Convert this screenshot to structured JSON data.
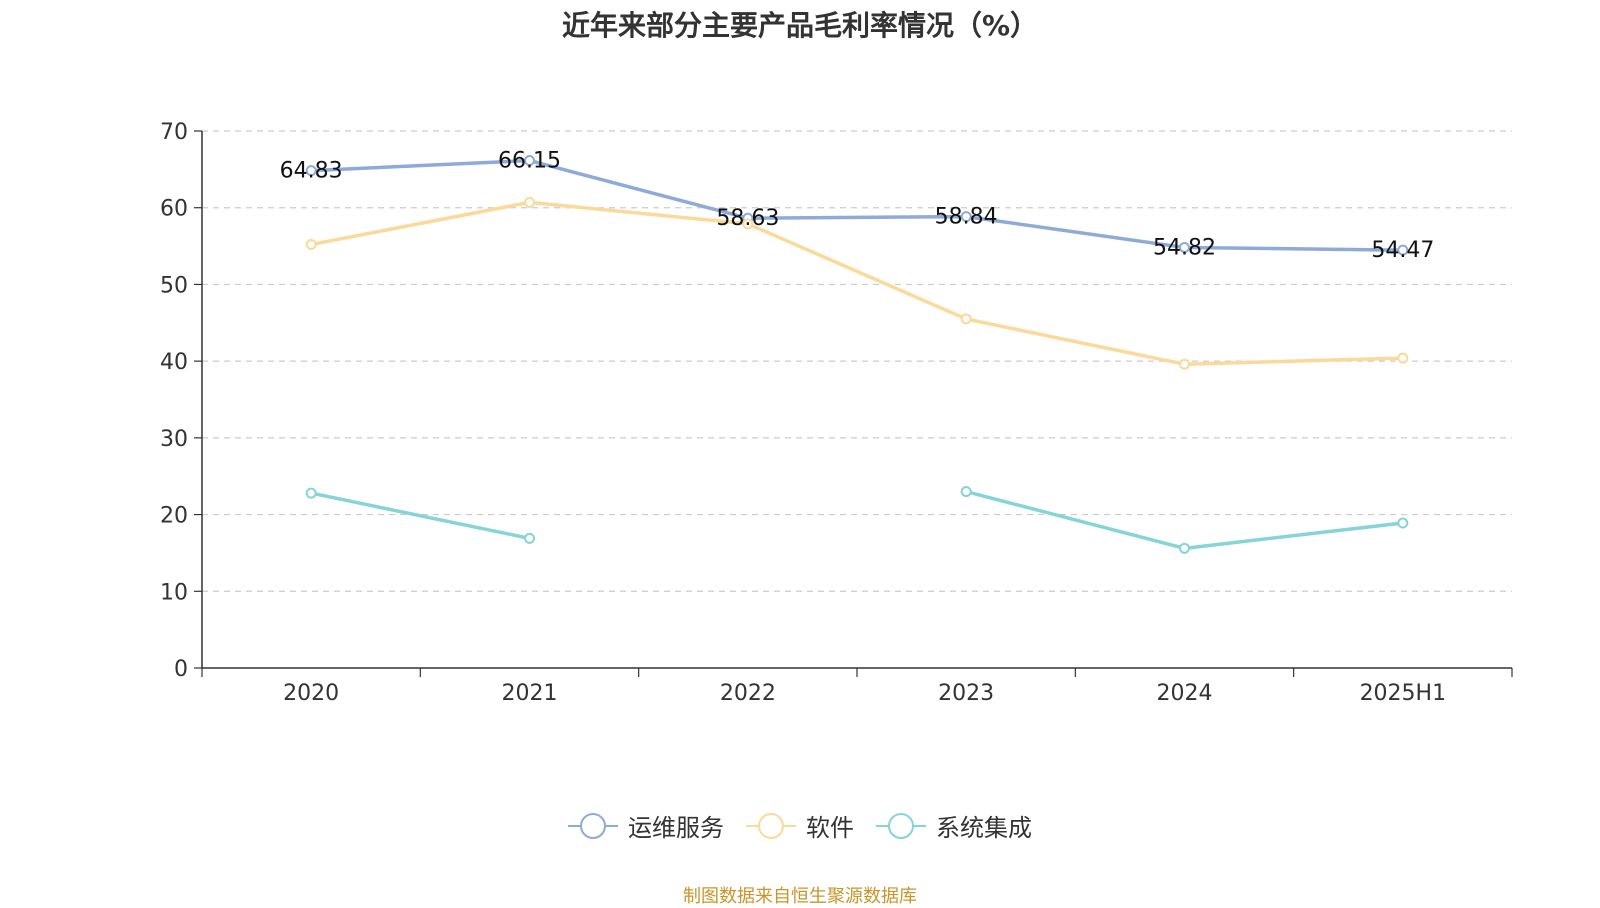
{
  "title": "近年来部分主要产品毛利率情况（%）",
  "source": "制图数据来自恒生聚源数据库",
  "chart_data": {
    "type": "line",
    "title": "近年来部分主要产品毛利率情况（%）",
    "categories": [
      "2020",
      "2021",
      "2022",
      "2023",
      "2024",
      "2025H1"
    ],
    "ylim": [
      0,
      70
    ],
    "yticks": [
      0,
      10,
      20,
      30,
      40,
      50,
      60,
      70
    ],
    "grid": true,
    "legend_position": "bottom",
    "series": [
      {
        "name": "运维服务",
        "color": "#8eaad8",
        "values": [
          64.83,
          66.15,
          58.63,
          58.84,
          54.82,
          54.47
        ],
        "labels": [
          "64.83",
          "66.15",
          "58.63",
          "58.84",
          "54.82",
          "54.47"
        ]
      },
      {
        "name": "软件",
        "color": "#fbd99a",
        "values": [
          55.2,
          60.7,
          57.9,
          45.5,
          39.6,
          40.4
        ]
      },
      {
        "name": "系统集成",
        "color": "#86d4d6",
        "values": [
          22.8,
          16.9,
          null,
          23.0,
          15.6,
          18.9
        ]
      }
    ]
  }
}
